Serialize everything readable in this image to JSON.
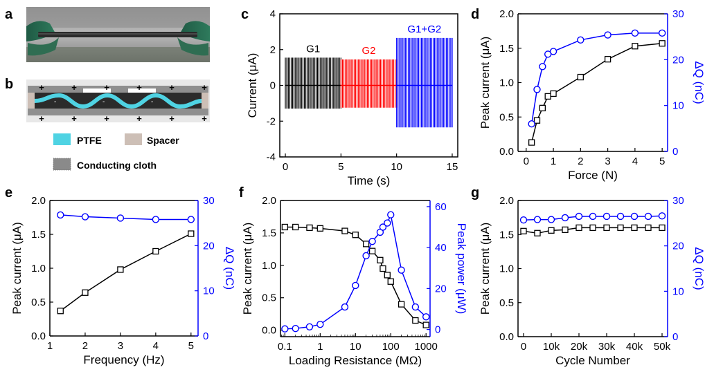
{
  "colors": {
    "black": "#000000",
    "blue": "#0000ff",
    "red": "#ff0000",
    "ptfe": "#4fd3e3",
    "spacer": "#cdbfb6",
    "cloth": "#8a8a8a"
  },
  "panel_labels": [
    "a",
    "b",
    "c",
    "d",
    "e",
    "f",
    "g"
  ],
  "photo_a": {
    "description_icon": "device-photo-icon"
  },
  "schematic_b": {
    "legend": [
      {
        "label": "PTFE",
        "icon": "ptfe-swatch-icon"
      },
      {
        "label": "Spacer",
        "icon": "spacer-swatch-icon"
      },
      {
        "label": "Conducting cloth",
        "icon": "cloth-swatch-icon"
      }
    ],
    "top_charges": [
      "+",
      "+",
      "+",
      "+",
      "+",
      "+"
    ],
    "bottom_charges": [
      "+",
      "+",
      "+",
      "+",
      "+",
      "+"
    ]
  },
  "chart_data": [
    {
      "id": "c",
      "type": "line",
      "title": "",
      "xlabel": "Time (s)",
      "ylabel": "Current (μA)",
      "xlim": [
        -0.5,
        15.5
      ],
      "ylim": [
        -4,
        4
      ],
      "xticks": [
        0,
        5,
        10,
        15
      ],
      "yticks": [
        -4,
        -2,
        0,
        2,
        4
      ],
      "annotations": [
        "G1",
        "G2",
        "G1+G2"
      ],
      "series": [
        {
          "name": "G1",
          "color": "#000000",
          "x_range": [
            0,
            5
          ],
          "peak_pos": 1.55,
          "peak_neg": -1.3
        },
        {
          "name": "G2",
          "color": "#ff0000",
          "x_range": [
            5,
            10
          ],
          "peak_pos": 1.45,
          "peak_neg": -1.25
        },
        {
          "name": "G1+G2",
          "color": "#0000ff",
          "x_range": [
            10,
            15
          ],
          "peak_pos": 2.65,
          "peak_neg": -2.35
        }
      ]
    },
    {
      "id": "d",
      "type": "line",
      "xlabel": "Force (N)",
      "ylabel": "Peak current (μA)",
      "y2label": "ΔQ (nC)",
      "xlim": [
        -0.3,
        5.2
      ],
      "ylim": [
        0,
        2.0
      ],
      "y2lim": [
        0,
        30
      ],
      "xticks": [
        0,
        1,
        2,
        3,
        4,
        5
      ],
      "yticks": [
        0.0,
        0.5,
        1.0,
        1.5,
        2.0
      ],
      "y2ticks": [
        0,
        10,
        20,
        30
      ],
      "series": [
        {
          "name": "Peak current",
          "axis": "left",
          "marker": "square",
          "color": "#000000",
          "x": [
            0.2,
            0.4,
            0.6,
            0.8,
            1.0,
            2.0,
            3.0,
            4.0,
            5.0
          ],
          "y": [
            0.13,
            0.45,
            0.63,
            0.8,
            0.84,
            1.08,
            1.34,
            1.53,
            1.57
          ]
        },
        {
          "name": "ΔQ",
          "axis": "right",
          "marker": "circle",
          "color": "#0000ff",
          "x": [
            0.2,
            0.4,
            0.6,
            0.8,
            1.0,
            2.0,
            3.0,
            4.0,
            5.0
          ],
          "y": [
            6.0,
            13.5,
            18.5,
            21.2,
            21.8,
            24.3,
            25.4,
            25.8,
            25.8
          ]
        }
      ]
    },
    {
      "id": "e",
      "type": "line",
      "xlabel": "Frequency (Hz)",
      "ylabel": "Peak current (μA)",
      "y2label": "ΔQ (nC)",
      "xlim": [
        1,
        5.2
      ],
      "ylim": [
        0,
        2.0
      ],
      "y2lim": [
        0,
        30
      ],
      "xticks": [
        1,
        2,
        3,
        4,
        5
      ],
      "yticks": [
        0.0,
        0.5,
        1.0,
        1.5,
        2.0
      ],
      "y2ticks": [
        0,
        10,
        20,
        30
      ],
      "series": [
        {
          "name": "Peak current",
          "axis": "left",
          "marker": "square",
          "color": "#000000",
          "x": [
            1.3,
            2,
            3,
            4,
            5
          ],
          "y": [
            0.37,
            0.64,
            0.98,
            1.25,
            1.51
          ]
        },
        {
          "name": "ΔQ",
          "axis": "right",
          "marker": "circle",
          "color": "#0000ff",
          "x": [
            1.3,
            2,
            3,
            4,
            5
          ],
          "y": [
            26.8,
            26.4,
            26.1,
            25.8,
            25.8
          ]
        }
      ]
    },
    {
      "id": "f",
      "type": "line",
      "xscale": "log",
      "xlabel": "Loading Resistance (MΩ)",
      "ylabel": "Peak current (μA)",
      "y2label": "Peak power (μW)",
      "xlim": [
        0.075,
        1300
      ],
      "ylim": [
        -0.1,
        2.0
      ],
      "y2lim": [
        -3.5,
        63
      ],
      "xticks": [
        0.1,
        1,
        10,
        100,
        1000
      ],
      "xticklabels": [
        "0.1",
        "1",
        "10",
        "100",
        "1000"
      ],
      "yticks": [
        0.0,
        0.5,
        1.0,
        1.5,
        2.0
      ],
      "y2ticks": [
        0,
        20,
        40,
        60
      ],
      "series": [
        {
          "name": "Peak current",
          "axis": "left",
          "marker": "square",
          "color": "#000000",
          "x": [
            0.1,
            0.2,
            0.5,
            1,
            5,
            10,
            20,
            30,
            50,
            60,
            80,
            100,
            200,
            500,
            1000
          ],
          "y": [
            1.59,
            1.59,
            1.58,
            1.57,
            1.53,
            1.47,
            1.33,
            1.22,
            1.08,
            0.95,
            0.85,
            0.75,
            0.4,
            0.15,
            0.08
          ]
        },
        {
          "name": "Peak power",
          "axis": "right",
          "marker": "circle",
          "color": "#0000ff",
          "x": [
            0.1,
            0.2,
            0.5,
            1,
            5,
            10,
            20,
            30,
            50,
            60,
            80,
            100,
            200,
            500,
            1000
          ],
          "y": [
            0.3,
            0.5,
            1.3,
            2.5,
            11.0,
            21.5,
            36.0,
            43.0,
            47.5,
            50.0,
            52.0,
            56.0,
            29.0,
            11.0,
            6.2
          ]
        }
      ]
    },
    {
      "id": "g",
      "type": "line",
      "xlabel": "Cycle Number",
      "ylabel": "Peak current (μA)",
      "y2label": "ΔQ (nC)",
      "xlim": [
        -2000,
        52000
      ],
      "ylim": [
        0,
        2.0
      ],
      "y2lim": [
        0,
        30
      ],
      "xticks": [
        0,
        10000,
        20000,
        30000,
        40000,
        50000
      ],
      "xticklabels": [
        "0",
        "10k",
        "20k",
        "30k",
        "40k",
        "50k"
      ],
      "yticks": [
        0.0,
        0.5,
        1.0,
        1.5,
        2.0
      ],
      "y2ticks": [
        0,
        10,
        20,
        30
      ],
      "series": [
        {
          "name": "Peak current",
          "axis": "left",
          "marker": "square",
          "color": "#000000",
          "x": [
            0,
            5000,
            10000,
            15000,
            20000,
            25000,
            30000,
            35000,
            40000,
            45000,
            50000
          ],
          "y": [
            1.55,
            1.52,
            1.56,
            1.57,
            1.6,
            1.6,
            1.6,
            1.6,
            1.6,
            1.6,
            1.6
          ]
        },
        {
          "name": "ΔQ",
          "axis": "right",
          "marker": "circle",
          "color": "#0000ff",
          "x": [
            0,
            5000,
            10000,
            15000,
            20000,
            25000,
            30000,
            35000,
            40000,
            45000,
            50000
          ],
          "y": [
            25.7,
            25.8,
            25.8,
            26.2,
            26.5,
            26.5,
            26.5,
            26.5,
            26.5,
            26.5,
            26.6
          ]
        }
      ]
    }
  ]
}
